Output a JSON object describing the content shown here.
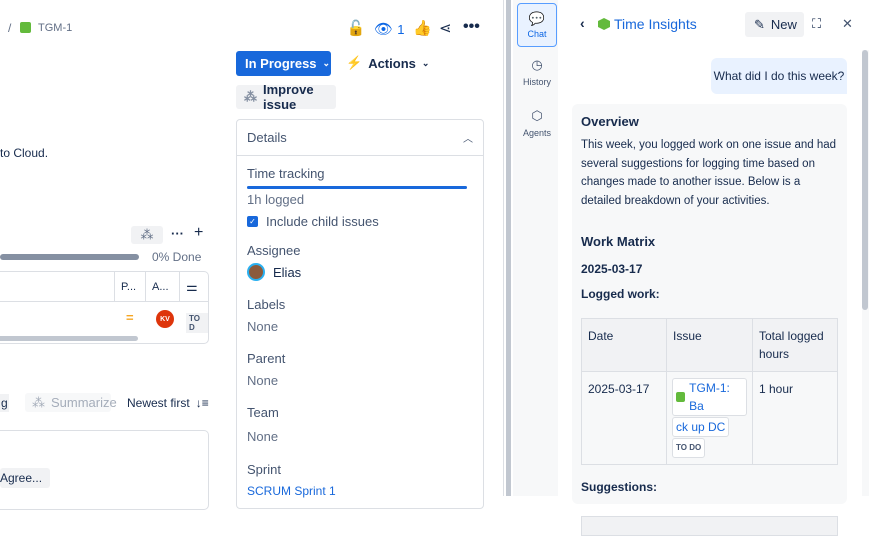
{
  "breadcrumb": {
    "separator": "/",
    "issue_key": "TGM-1"
  },
  "header": {
    "watch_count": "1"
  },
  "status_button": {
    "label": "In Progress"
  },
  "actions_button": {
    "label": "Actions"
  },
  "improve_button": {
    "label": "Improve issue"
  },
  "description_fragment": "to Cloud.",
  "child_issues": {
    "progress_label": "0% Done",
    "progress_percent": 0,
    "columns": [
      "P...",
      "A..."
    ],
    "row": {
      "assignee_initials": "KV",
      "status": "TO D"
    }
  },
  "activity": {
    "summarize_label": "Summarize",
    "sort_label": "Newest first",
    "partial_button": "g",
    "comment_chip": "Agree..."
  },
  "details": {
    "title": "Details",
    "time_tracking": {
      "label": "Time tracking",
      "logged": "1h logged",
      "progress_percent": 100
    },
    "include_child": {
      "label": "Include child issues",
      "checked": true
    },
    "fields": [
      {
        "label": "Assignee",
        "value": "Elias"
      },
      {
        "label": "Labels",
        "value": "None"
      },
      {
        "label": "Parent",
        "value": "None"
      },
      {
        "label": "Team",
        "value": "None"
      },
      {
        "label": "Sprint",
        "value": "SCRUM Sprint 1"
      }
    ]
  },
  "rail": {
    "items": [
      {
        "label": "Chat",
        "active": true
      },
      {
        "label": "History"
      },
      {
        "label": "Agents"
      }
    ]
  },
  "chat": {
    "title": "Time Insights",
    "new_label": "New",
    "user_message": "What did I do this week?",
    "response": {
      "heading": "Overview",
      "paragraph": "This week, you logged work on one issue and had several suggestions for logging time based on changes made to another issue. Below is a detailed breakdown of your activities.",
      "matrix_heading": "Work Matrix",
      "date": "2025-03-17",
      "logged_label": "Logged work:",
      "table": {
        "headers": [
          "Date",
          "Issue",
          "Total logged hours"
        ],
        "row": {
          "date": "2025-03-17",
          "issue_a": "TGM-1: Ba",
          "issue_b": "ck up DC",
          "status": "TO DO",
          "hours": "1 hour"
        }
      },
      "suggestions_label": "Suggestions:"
    }
  },
  "colors": {
    "primary": "#0c66e4",
    "link": "#1868db",
    "story_green": "#63ba3c",
    "kv_red": "#de350b"
  }
}
